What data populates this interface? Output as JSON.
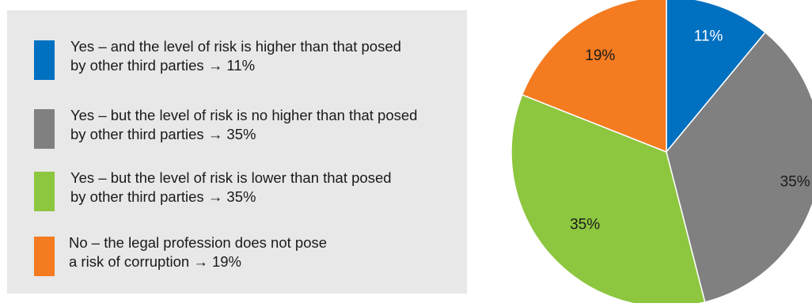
{
  "chart_data": {
    "type": "pie",
    "title": "",
    "slices": [
      {
        "label": "Yes – and the level of risk is higher than that posed\nby other third parties → 11%",
        "value": 11,
        "display": "11%",
        "color": "#0070c0"
      },
      {
        "label": "Yes – but the level of risk is no higher than that posed\nby other third parties → 35%",
        "value": 35,
        "display": "35%",
        "color": "#808080"
      },
      {
        "label": "Yes – but the level of risk is lower than that posed\nby other third parties → 35%",
        "value": 35,
        "display": "35%",
        "color": "#8dc63f"
      },
      {
        "label": "No – the legal profession does not pose\na risk of corruption → 19%",
        "value": 19,
        "display": "19%",
        "color": "#f47b20"
      }
    ],
    "legend_position": "left"
  }
}
